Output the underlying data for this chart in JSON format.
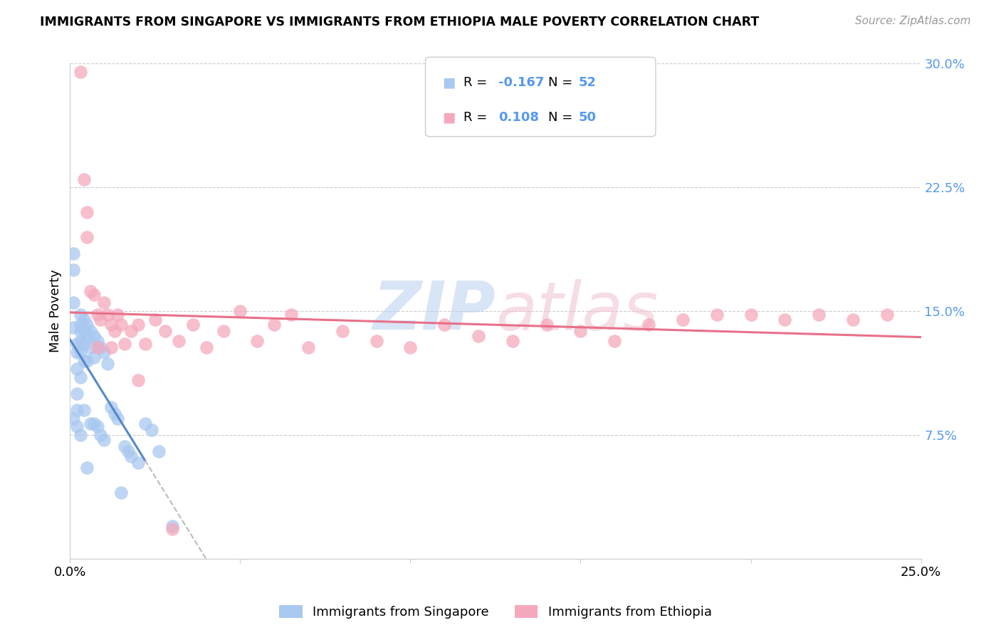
{
  "title": "IMMIGRANTS FROM SINGAPORE VS IMMIGRANTS FROM ETHIOPIA MALE POVERTY CORRELATION CHART",
  "source": "Source: ZipAtlas.com",
  "ylabel": "Male Poverty",
  "xlim": [
    0.0,
    0.25
  ],
  "ylim": [
    0.0,
    0.3
  ],
  "singapore_color": "#a8c8f0",
  "ethiopia_color": "#f5a8bc",
  "singapore_line_color": "#5588cc",
  "ethiopia_line_color": "#e8708a",
  "trend_extend_color": "#bbbbbb",
  "legend_R_singapore": "-0.167",
  "legend_N_singapore": "52",
  "legend_R_ethiopia": "0.108",
  "legend_N_ethiopia": "50",
  "legend_label_singapore": "Immigrants from Singapore",
  "legend_label_ethiopia": "Immigrants from Ethiopia",
  "background_color": "#ffffff",
  "grid_color": "#cccccc",
  "tick_color_blue": "#5599ee",
  "singapore_x": [
    0.001,
    0.001,
    0.001,
    0.001,
    0.001,
    0.002,
    0.002,
    0.002,
    0.002,
    0.002,
    0.002,
    0.003,
    0.003,
    0.003,
    0.003,
    0.003,
    0.003,
    0.003,
    0.004,
    0.004,
    0.004,
    0.004,
    0.004,
    0.005,
    0.005,
    0.005,
    0.005,
    0.006,
    0.006,
    0.006,
    0.007,
    0.007,
    0.007,
    0.008,
    0.008,
    0.009,
    0.009,
    0.01,
    0.01,
    0.011,
    0.012,
    0.013,
    0.014,
    0.015,
    0.016,
    0.017,
    0.018,
    0.02,
    0.022,
    0.024,
    0.026,
    0.03
  ],
  "singapore_y": [
    0.185,
    0.175,
    0.155,
    0.14,
    0.085,
    0.13,
    0.125,
    0.115,
    0.1,
    0.09,
    0.08,
    0.148,
    0.142,
    0.138,
    0.132,
    0.125,
    0.11,
    0.075,
    0.145,
    0.138,
    0.13,
    0.12,
    0.09,
    0.142,
    0.135,
    0.12,
    0.055,
    0.138,
    0.128,
    0.082,
    0.135,
    0.122,
    0.082,
    0.132,
    0.08,
    0.128,
    0.075,
    0.125,
    0.072,
    0.118,
    0.092,
    0.088,
    0.085,
    0.04,
    0.068,
    0.065,
    0.062,
    0.058,
    0.082,
    0.078,
    0.065,
    0.02
  ],
  "ethiopia_x": [
    0.003,
    0.004,
    0.005,
    0.005,
    0.006,
    0.007,
    0.008,
    0.009,
    0.01,
    0.011,
    0.012,
    0.013,
    0.014,
    0.015,
    0.016,
    0.018,
    0.02,
    0.022,
    0.025,
    0.028,
    0.032,
    0.036,
    0.04,
    0.045,
    0.05,
    0.055,
    0.06,
    0.065,
    0.07,
    0.08,
    0.09,
    0.1,
    0.11,
    0.12,
    0.13,
    0.14,
    0.15,
    0.16,
    0.17,
    0.18,
    0.19,
    0.2,
    0.21,
    0.22,
    0.23,
    0.24,
    0.008,
    0.012,
    0.02,
    0.03
  ],
  "ethiopia_y": [
    0.295,
    0.23,
    0.21,
    0.195,
    0.162,
    0.16,
    0.148,
    0.145,
    0.155,
    0.148,
    0.142,
    0.138,
    0.148,
    0.142,
    0.13,
    0.138,
    0.142,
    0.13,
    0.145,
    0.138,
    0.132,
    0.142,
    0.128,
    0.138,
    0.15,
    0.132,
    0.142,
    0.148,
    0.128,
    0.138,
    0.132,
    0.128,
    0.142,
    0.135,
    0.132,
    0.142,
    0.138,
    0.132,
    0.142,
    0.145,
    0.148,
    0.148,
    0.145,
    0.148,
    0.145,
    0.148,
    0.128,
    0.128,
    0.108,
    0.018
  ]
}
